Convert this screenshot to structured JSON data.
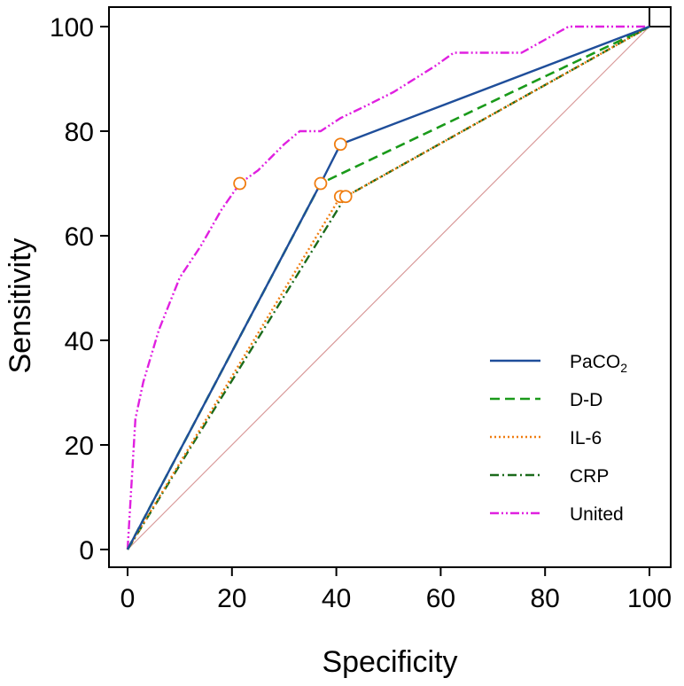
{
  "chart_data": {
    "type": "line",
    "title": "",
    "xlabel": "Specificity",
    "ylabel": "Sensitivity",
    "xlim": [
      0,
      100
    ],
    "ylim": [
      0,
      100
    ],
    "xticks": [
      "0",
      "20",
      "40",
      "60",
      "80",
      "100"
    ],
    "yticks": [
      "0",
      "20",
      "40",
      "60",
      "80",
      "100"
    ],
    "grid": false,
    "legend_position": "bottom-right",
    "reference_line": {
      "name": "reference",
      "color": "#d99a9a",
      "x": [
        0,
        100
      ],
      "y": [
        0,
        100
      ]
    },
    "series": [
      {
        "name": "PaCO",
        "sub": "2",
        "color": "#1f4e9a",
        "dash": "",
        "width": 2.4,
        "x": [
          0,
          37,
          40.8,
          100
        ],
        "y": [
          0,
          70,
          77.5,
          100
        ]
      },
      {
        "name": "D-D",
        "sub": "",
        "color": "#1a9a1a",
        "dash": "11,6",
        "width": 2.6,
        "x": [
          0,
          37,
          100
        ],
        "y": [
          0,
          70,
          100
        ]
      },
      {
        "name": "IL-6",
        "sub": "",
        "color": "#f07d10",
        "dash": "2,3",
        "width": 2.4,
        "x": [
          0,
          40.8,
          41.8,
          100
        ],
        "y": [
          0,
          67.5,
          67.5,
          100
        ]
      },
      {
        "name": "CRP",
        "sub": "",
        "color": "#1b6b1b",
        "dash": "10,4,2,4",
        "width": 2.4,
        "x": [
          0,
          41.8,
          100
        ],
        "y": [
          0,
          67.5,
          100
        ]
      },
      {
        "name": "United",
        "sub": "",
        "color": "#e020e0",
        "dash": "10,3,2,3,2,3",
        "width": 2.4,
        "x": [
          0,
          1.5,
          3,
          6,
          10,
          14,
          18,
          21.5,
          25,
          30,
          33,
          34.5,
          37,
          40.8,
          46,
          51,
          55,
          59,
          62.5,
          67,
          75.5,
          80,
          84.5,
          88,
          100
        ],
        "y": [
          0,
          25,
          32,
          42,
          52,
          58,
          65,
          70,
          72.5,
          77.5,
          80,
          80,
          80,
          82.5,
          85,
          87.5,
          90,
          92.5,
          95,
          95,
          95,
          97.5,
          100,
          100,
          100
        ]
      }
    ],
    "markers": [
      {
        "series": "United",
        "x": 21.5,
        "y": 70
      },
      {
        "series": "D-D",
        "x": 37,
        "y": 70
      },
      {
        "series": "PaCO2",
        "x": 40.8,
        "y": 77.5
      },
      {
        "series": "IL-6",
        "x": 40.8,
        "y": 67.5
      },
      {
        "series": "CRP",
        "x": 41.8,
        "y": 67.5
      }
    ],
    "marker_color": "#f07d10"
  }
}
